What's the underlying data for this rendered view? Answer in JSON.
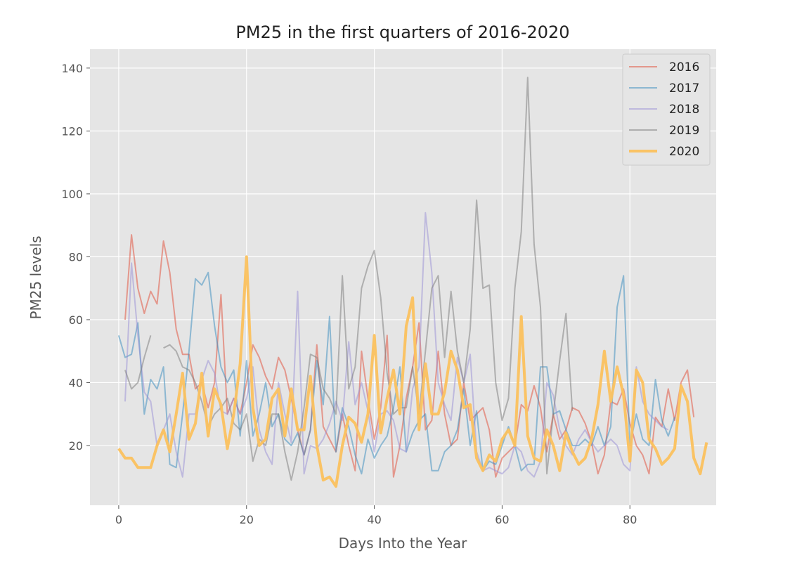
{
  "chart_data": {
    "type": "line",
    "title": "PM25 in the first quarters of 2016-2020",
    "xlabel": "Days Into the Year",
    "ylabel": "PM25 levels",
    "xlim": [
      -4.5,
      93.5
    ],
    "ylim": [
      1,
      146
    ],
    "xticks": [
      0,
      20,
      40,
      60,
      80
    ],
    "yticks": [
      20,
      40,
      60,
      80,
      100,
      120,
      140
    ],
    "grid": true,
    "legend_position": "top-right",
    "series": [
      {
        "name": "2016",
        "color": "#E24A33",
        "x_start": 1,
        "values": [
          60,
          87,
          70,
          62,
          69,
          65,
          85,
          75,
          57,
          49,
          49,
          38,
          40,
          32,
          40,
          68,
          30,
          35,
          30,
          40,
          52,
          48,
          42,
          38,
          48,
          44,
          35,
          25,
          17,
          25,
          52,
          26,
          22,
          18,
          30,
          20,
          12,
          50,
          35,
          22,
          32,
          55,
          10,
          20,
          35,
          45,
          59,
          25,
          28,
          50,
          30,
          20,
          22,
          40,
          28,
          30,
          32,
          25,
          10,
          16,
          18,
          20,
          33,
          31,
          39,
          32,
          18,
          30,
          22,
          25,
          32,
          31,
          27,
          21,
          11,
          17,
          34,
          33,
          38,
          27,
          20,
          17,
          11,
          29,
          26,
          38,
          28,
          40,
          44,
          29
        ]
      },
      {
        "name": "2017",
        "color": "#348ABD",
        "x_start": 0,
        "values": [
          55,
          48,
          49,
          59,
          30,
          41,
          38,
          45,
          14,
          13,
          30,
          50,
          73,
          71,
          75,
          58,
          45,
          40,
          44,
          23,
          47,
          23,
          30,
          40,
          26,
          30,
          22,
          20,
          24,
          17,
          25,
          47,
          33,
          61,
          18,
          32,
          26,
          17,
          11,
          22,
          16,
          20,
          23,
          32,
          45,
          18,
          24,
          28,
          30,
          12,
          12,
          18,
          20,
          25,
          38,
          20,
          31,
          12,
          15,
          14,
          20,
          26,
          20,
          12,
          14,
          14,
          45,
          45,
          30,
          31,
          25,
          20,
          20,
          22,
          20,
          26,
          20,
          26,
          64,
          74,
          20,
          30,
          22,
          20,
          41,
          28,
          23,
          29
        ]
      },
      {
        "name": "2018",
        "color": "#988ED5",
        "x_start": 1,
        "values": [
          34,
          78,
          55,
          37,
          34,
          20,
          25,
          30,
          18,
          10,
          30,
          30,
          41,
          47,
          43,
          31,
          30,
          35,
          30,
          35,
          45,
          25,
          18,
          14,
          40,
          30,
          21,
          69,
          11,
          20,
          19,
          22,
          27,
          34,
          28,
          53,
          33,
          40,
          31,
          18,
          30,
          31,
          28,
          19,
          18,
          38,
          45,
          94,
          75,
          40,
          33,
          28,
          48,
          40,
          49,
          18,
          12,
          13,
          12,
          11,
          13,
          20,
          18,
          12,
          10,
          15,
          40,
          36,
          25,
          20,
          17,
          22,
          25,
          21,
          18,
          20,
          22,
          20,
          14,
          12,
          45,
          34,
          30,
          28,
          26,
          25
        ]
      },
      {
        "name": "2019",
        "color": "#777777",
        "x_start": 1,
        "values": [
          44,
          38,
          40,
          48,
          55,
          null,
          51,
          52,
          50,
          45,
          44,
          40,
          34,
          26,
          30,
          32,
          35,
          27,
          25,
          30,
          15,
          22,
          20,
          30,
          30,
          18,
          9,
          18,
          32,
          49,
          48,
          38,
          35,
          30,
          74,
          38,
          45,
          70,
          77,
          82,
          67,
          43,
          30,
          32,
          32,
          45,
          30,
          50,
          70,
          74,
          48,
          69,
          50,
          40,
          57,
          98,
          70,
          71,
          40,
          28,
          35,
          70,
          88,
          137,
          84,
          64,
          11,
          30,
          47,
          62,
          31
        ]
      },
      {
        "name": "2020",
        "color": "#FBC15E",
        "x_start": 0,
        "values": [
          19,
          16,
          16,
          13,
          13,
          13,
          20,
          25,
          18,
          30,
          43,
          22,
          27,
          43,
          23,
          38,
          33,
          19,
          30,
          46,
          80,
          32,
          20,
          22,
          35,
          38,
          23,
          38,
          25,
          25,
          42,
          20,
          9,
          10,
          7,
          20,
          29,
          27,
          21,
          30,
          55,
          24,
          35,
          44,
          30,
          58,
          67,
          25,
          46,
          30,
          30,
          37,
          50,
          44,
          32,
          33,
          16,
          12,
          17,
          15,
          22,
          25,
          20,
          61,
          23,
          16,
          15,
          25,
          20,
          12,
          24,
          18,
          14,
          16,
          22,
          33,
          50,
          34,
          45,
          36,
          15,
          44,
          40,
          22,
          19,
          14,
          16,
          19,
          39,
          34,
          16,
          11,
          21
        ]
      }
    ]
  }
}
